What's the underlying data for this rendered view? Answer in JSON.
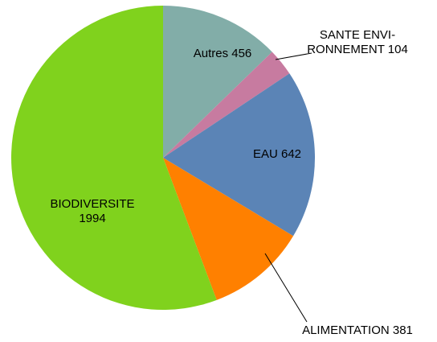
{
  "chart_data": {
    "type": "pie",
    "categories": [
      "Autres",
      "SANTE ENVI-RONNEMENT",
      "EAU",
      "ALIMENTATION",
      "BIODIVERSITE"
    ],
    "values": [
      456,
      104,
      642,
      381,
      1994
    ],
    "colors": [
      "#82ada8",
      "#c77ba0",
      "#5b84b6",
      "#ff8000",
      "#80d21d"
    ]
  }
}
